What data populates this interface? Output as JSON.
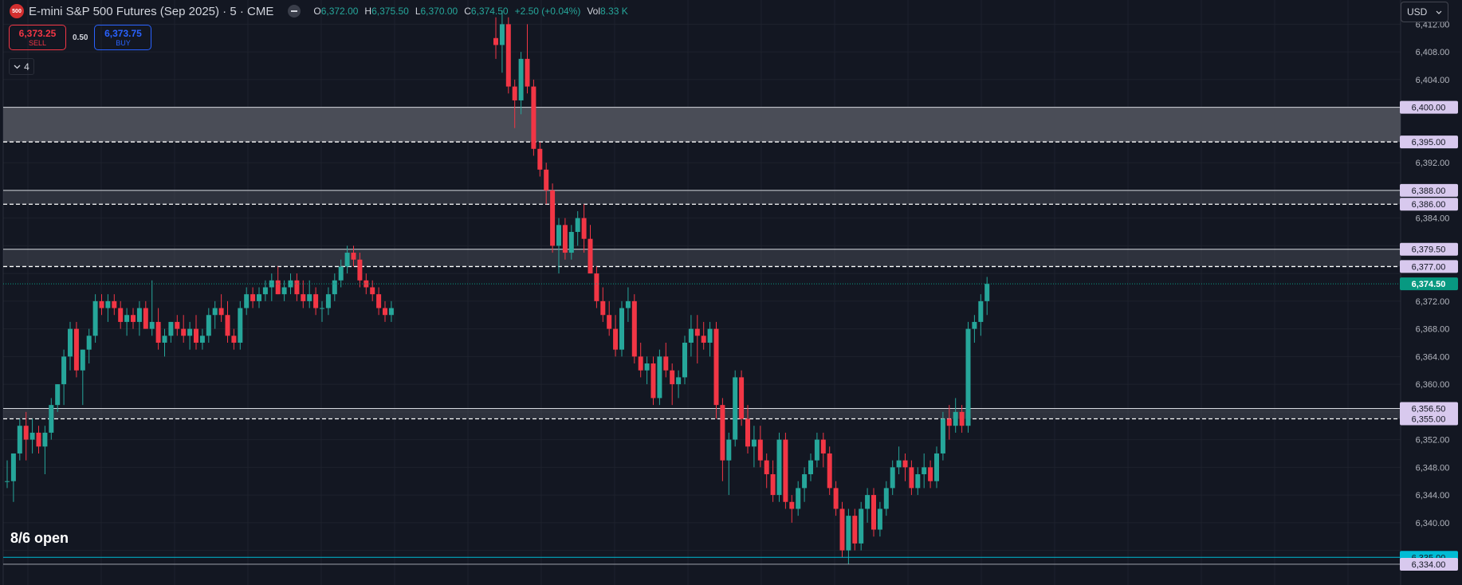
{
  "header": {
    "symbol_icon_text": "500",
    "title": "E-mini S&P 500 Futures (Sep 2025) · 5 · CME",
    "ohlc": [
      {
        "key": "O",
        "value": "6,372.00"
      },
      {
        "key": "H",
        "value": "6,375.50"
      },
      {
        "key": "L",
        "value": "6,370.00"
      },
      {
        "key": "C",
        "value": "6,374.50"
      },
      {
        "key": "",
        "value": "+2.50 (+0.04%)"
      },
      {
        "key": "Vol",
        "value": "8.33 K"
      }
    ]
  },
  "trade": {
    "sell_price": "6,373.25",
    "sell_label": "SELL",
    "spread": "0.50",
    "buy_price": "6,373.75",
    "buy_label": "BUY"
  },
  "indicators_toggle": {
    "icon": "chevron-down-icon",
    "count": "4"
  },
  "currency": {
    "label": "USD"
  },
  "note": "8/6 open",
  "colors": {
    "background": "#131722",
    "up": "#26a69a",
    "down": "#f23645",
    "zone_fill": "#4a4d57",
    "zone_label_bg": "#d8c9ee",
    "last_price_bg": "#089981",
    "open_line": "#00bcd4"
  },
  "chart_data": {
    "type": "candlestick",
    "ylim": [
      6331,
      6415.5
    ],
    "y_ticks": [
      "6,412.00",
      "6,408.00",
      "6,404.00",
      "6,392.00",
      "6,384.00",
      "6,372.00",
      "6,368.00",
      "6,364.00",
      "6,360.00",
      "6,352.00",
      "6,348.00",
      "6,344.00",
      "6,340.00"
    ],
    "zones": [
      {
        "top": 6400.0,
        "bottom": 6395.0,
        "top_label": "6,400.00",
        "bottom_label": "6,395.00",
        "filled": true
      },
      {
        "top": 6388.0,
        "bottom": 6386.0,
        "top_label": "6,388.00",
        "bottom_label": "6,386.00",
        "filled": false
      },
      {
        "top": 6379.5,
        "bottom": 6377.0,
        "top_label": "6,379.50",
        "bottom_label": "6,377.00",
        "filled": false
      },
      {
        "top": 6356.5,
        "bottom": 6355.0,
        "top_label": "6,356.50",
        "bottom_label": "6,355.00",
        "filled": false
      }
    ],
    "last_price": {
      "value": 6374.5,
      "label": "6,374.50"
    },
    "open_line": {
      "value": 6335.0,
      "label": "6,335.00"
    },
    "low_line": {
      "value": 6334.0,
      "label": "6,334.00"
    },
    "candles_ohlc": [
      [
        6346.0,
        6349.0,
        6345.0,
        6346.0
      ],
      [
        6346.0,
        6350.0,
        6343.0,
        6350.0
      ],
      [
        6350.0,
        6355.0,
        6349.0,
        6354.0
      ],
      [
        6354.0,
        6356.0,
        6349.0,
        6352.0
      ],
      [
        6352.0,
        6355.0,
        6350.0,
        6353.0
      ],
      [
        6353.0,
        6354.0,
        6350.0,
        6351.0
      ],
      [
        6351.0,
        6354.0,
        6347.0,
        6353.0
      ],
      [
        6353.0,
        6358.0,
        6352.0,
        6357.0
      ],
      [
        6357.0,
        6360.0,
        6356.0,
        6360.0
      ],
      [
        6360.0,
        6365.0,
        6357.0,
        6364.0
      ],
      [
        6364.0,
        6369.0,
        6362.0,
        6368.0
      ],
      [
        6368.0,
        6369.0,
        6361.0,
        6362.0
      ],
      [
        6362.0,
        6365.0,
        6357.0,
        6365.0
      ],
      [
        6365.0,
        6368.0,
        6363.0,
        6367.0
      ],
      [
        6367.0,
        6373.0,
        6366.0,
        6372.0
      ],
      [
        6372.0,
        6373.0,
        6370.0,
        6371.0
      ],
      [
        6371.0,
        6373.0,
        6369.0,
        6372.0
      ],
      [
        6372.0,
        6373.0,
        6370.0,
        6371.0
      ],
      [
        6371.0,
        6372.0,
        6368.0,
        6369.0
      ],
      [
        6369.0,
        6371.0,
        6367.0,
        6370.0
      ],
      [
        6370.0,
        6371.0,
        6368.0,
        6369.0
      ],
      [
        6369.0,
        6372.0,
        6367.0,
        6371.0
      ],
      [
        6371.0,
        6372.0,
        6368.0,
        6368.0
      ],
      [
        6368.0,
        6375.0,
        6367.0,
        6369.0
      ],
      [
        6369.0,
        6371.0,
        6365.0,
        6366.0
      ],
      [
        6366.0,
        6368.0,
        6364.0,
        6367.0
      ],
      [
        6367.0,
        6369.0,
        6366.0,
        6369.0
      ],
      [
        6369.0,
        6370.0,
        6367.0,
        6368.0
      ],
      [
        6368.0,
        6370.0,
        6366.0,
        6367.0
      ],
      [
        6367.0,
        6369.0,
        6365.0,
        6368.0
      ],
      [
        6368.0,
        6370.0,
        6365.0,
        6366.0
      ],
      [
        6366.0,
        6368.0,
        6365.0,
        6367.0
      ],
      [
        6367.0,
        6371.0,
        6366.0,
        6370.0
      ],
      [
        6370.0,
        6372.0,
        6368.0,
        6371.0
      ],
      [
        6371.0,
        6373.0,
        6369.0,
        6370.0
      ],
      [
        6370.0,
        6372.0,
        6366.0,
        6367.0
      ],
      [
        6367.0,
        6368.0,
        6365.0,
        6366.0
      ],
      [
        6366.0,
        6372.0,
        6365.0,
        6371.0
      ],
      [
        6371.0,
        6374.0,
        6370.0,
        6373.0
      ],
      [
        6373.0,
        6374.0,
        6371.0,
        6372.0
      ],
      [
        6372.0,
        6374.0,
        6371.0,
        6373.0
      ],
      [
        6373.0,
        6375.0,
        6372.0,
        6374.0
      ],
      [
        6374.0,
        6376.0,
        6372.0,
        6375.0
      ],
      [
        6375.0,
        6377.0,
        6373.0,
        6373.0
      ],
      [
        6373.0,
        6375.0,
        6372.0,
        6374.0
      ],
      [
        6374.0,
        6376.0,
        6373.0,
        6375.0
      ],
      [
        6375.0,
        6376.0,
        6372.0,
        6373.0
      ],
      [
        6373.0,
        6375.0,
        6371.0,
        6372.0
      ],
      [
        6372.0,
        6375.0,
        6371.0,
        6373.0
      ],
      [
        6373.0,
        6374.0,
        6370.0,
        6371.0
      ],
      [
        6371.0,
        6372.0,
        6369.0,
        6371.0
      ],
      [
        6371.0,
        6374.0,
        6370.0,
        6373.0
      ],
      [
        6373.0,
        6376.0,
        6372.0,
        6375.0
      ],
      [
        6375.0,
        6378.0,
        6374.0,
        6377.0
      ],
      [
        6377.0,
        6380.0,
        6376.0,
        6379.0
      ],
      [
        6379.0,
        6380.0,
        6377.0,
        6378.0
      ],
      [
        6378.0,
        6379.0,
        6374.0,
        6375.0
      ],
      [
        6375.0,
        6376.0,
        6373.0,
        6374.0
      ],
      [
        6374.0,
        6375.0,
        6372.0,
        6373.0
      ],
      [
        6373.0,
        6374.0,
        6370.0,
        6371.0
      ],
      [
        6371.0,
        6372.0,
        6369.0,
        6370.0
      ],
      [
        6370.0,
        6372.0,
        6369.0,
        6371.0
      ],
      [
        6410.0,
        6413.0,
        6407.0,
        6409.0
      ],
      [
        6409.0,
        6414.0,
        6405.0,
        6412.0
      ],
      [
        6412.0,
        6413.0,
        6402.0,
        6403.0
      ],
      [
        6403.0,
        6404.0,
        6397.0,
        6401.0
      ],
      [
        6401.0,
        6408.0,
        6399.0,
        6407.0
      ],
      [
        6407.0,
        6412.0,
        6402.0,
        6403.0
      ],
      [
        6403.0,
        6404.0,
        6393.0,
        6394.0
      ],
      [
        6394.0,
        6395.0,
        6390.0,
        6391.0
      ],
      [
        6391.0,
        6392.0,
        6386.0,
        6388.0
      ],
      [
        6388.0,
        6389.0,
        6379.0,
        6380.0
      ],
      [
        6380.0,
        6384.0,
        6376.0,
        6383.0
      ],
      [
        6383.0,
        6384.0,
        6378.0,
        6379.0
      ],
      [
        6379.0,
        6383.0,
        6378.0,
        6382.0
      ],
      [
        6382.0,
        6385.0,
        6380.0,
        6384.0
      ],
      [
        6384.0,
        6386.0,
        6379.0,
        6381.0
      ],
      [
        6381.0,
        6383.0,
        6376.0,
        6376.0
      ],
      [
        6376.0,
        6377.0,
        6371.0,
        6372.0
      ],
      [
        6372.0,
        6374.0,
        6369.0,
        6370.0
      ],
      [
        6370.0,
        6372.0,
        6367.0,
        6368.0
      ],
      [
        6368.0,
        6370.0,
        6364.0,
        6365.0
      ],
      [
        6365.0,
        6372.0,
        6364.0,
        6371.0
      ],
      [
        6371.0,
        6374.0,
        6369.0,
        6372.0
      ],
      [
        6372.0,
        6373.0,
        6363.0,
        6364.0
      ],
      [
        6364.0,
        6366.0,
        6361.0,
        6362.0
      ],
      [
        6362.0,
        6364.0,
        6360.0,
        6363.0
      ],
      [
        6363.0,
        6364.0,
        6357.0,
        6358.0
      ],
      [
        6358.0,
        6365.0,
        6357.0,
        6364.0
      ],
      [
        6364.0,
        6366.0,
        6361.0,
        6362.0
      ],
      [
        6362.0,
        6363.0,
        6357.0,
        6360.0
      ],
      [
        6360.0,
        6362.0,
        6358.0,
        6361.0
      ],
      [
        6361.0,
        6367.0,
        6360.0,
        6366.0
      ],
      [
        6366.0,
        6370.0,
        6364.0,
        6368.0
      ],
      [
        6368.0,
        6370.0,
        6363.0,
        6367.0
      ],
      [
        6367.0,
        6369.0,
        6365.0,
        6366.0
      ],
      [
        6366.0,
        6369.0,
        6364.0,
        6368.0
      ],
      [
        6368.0,
        6369.0,
        6355.0,
        6357.0
      ],
      [
        6357.0,
        6358.0,
        6346.0,
        6349.0
      ],
      [
        6349.0,
        6353.0,
        6344.0,
        6352.0
      ],
      [
        6352.0,
        6362.0,
        6351.0,
        6361.0
      ],
      [
        6361.0,
        6362.0,
        6354.0,
        6355.0
      ],
      [
        6355.0,
        6357.0,
        6350.0,
        6351.0
      ],
      [
        6351.0,
        6354.0,
        6348.0,
        6352.0
      ],
      [
        6352.0,
        6354.0,
        6348.0,
        6349.0
      ],
      [
        6349.0,
        6350.0,
        6345.0,
        6347.0
      ],
      [
        6347.0,
        6349.0,
        6343.0,
        6344.0
      ],
      [
        6344.0,
        6353.0,
        6343.0,
        6352.0
      ],
      [
        6352.0,
        6353.0,
        6342.0,
        6343.0
      ],
      [
        6343.0,
        6344.0,
        6340.0,
        6342.0
      ],
      [
        6342.0,
        6346.0,
        6341.0,
        6345.0
      ],
      [
        6345.0,
        6348.0,
        6343.0,
        6347.0
      ],
      [
        6347.0,
        6350.0,
        6346.0,
        6349.0
      ],
      [
        6349.0,
        6353.0,
        6348.0,
        6352.0
      ],
      [
        6352.0,
        6353.0,
        6348.0,
        6350.0
      ],
      [
        6350.0,
        6351.0,
        6344.0,
        6345.0
      ],
      [
        6345.0,
        6346.0,
        6341.0,
        6342.0
      ],
      [
        6342.0,
        6343.0,
        6335.0,
        6336.0
      ],
      [
        6336.0,
        6342.0,
        6334.0,
        6341.0
      ],
      [
        6341.0,
        6342.0,
        6336.0,
        6337.0
      ],
      [
        6337.0,
        6343.0,
        6336.0,
        6342.0
      ],
      [
        6342.0,
        6345.0,
        6340.0,
        6344.0
      ],
      [
        6344.0,
        6345.0,
        6338.0,
        6339.0
      ],
      [
        6339.0,
        6343.0,
        6338.0,
        6342.0
      ],
      [
        6342.0,
        6346.0,
        6341.0,
        6345.0
      ],
      [
        6345.0,
        6349.0,
        6344.0,
        6348.0
      ],
      [
        6348.0,
        6351.0,
        6347.0,
        6349.0
      ],
      [
        6349.0,
        6350.0,
        6346.0,
        6348.0
      ],
      [
        6348.0,
        6349.0,
        6344.0,
        6345.0
      ],
      [
        6345.0,
        6348.0,
        6344.0,
        6347.0
      ],
      [
        6347.0,
        6350.0,
        6345.0,
        6348.0
      ],
      [
        6348.0,
        6349.0,
        6345.0,
        6346.0
      ],
      [
        6346.0,
        6351.0,
        6345.0,
        6350.0
      ],
      [
        6350.0,
        6356.0,
        6349.0,
        6355.0
      ],
      [
        6355.0,
        6357.0,
        6352.0,
        6354.0
      ],
      [
        6354.0,
        6358.0,
        6353.0,
        6356.0
      ],
      [
        6356.0,
        6357.0,
        6353.0,
        6354.0
      ],
      [
        6354.0,
        6369.0,
        6353.0,
        6368.0
      ],
      [
        6368.0,
        6370.0,
        6366.0,
        6369.0
      ],
      [
        6369.0,
        6373.0,
        6367.0,
        6372.0
      ],
      [
        6372.0,
        6375.5,
        6370.0,
        6374.5
      ]
    ]
  }
}
